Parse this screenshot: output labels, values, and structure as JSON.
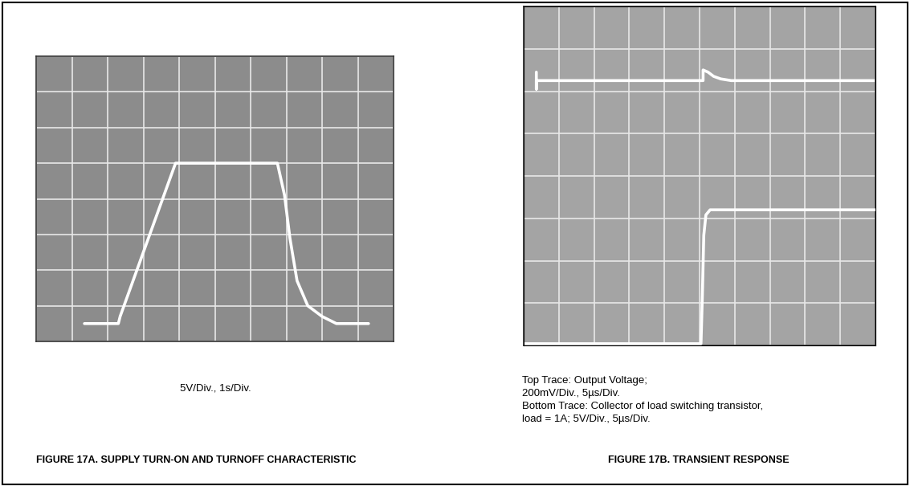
{
  "chart_data": [
    {
      "type": "line",
      "title": "FIGURE 17A. SUPPLY TURN-ON AND TURNOFF CHARACTERISTIC",
      "subtitle": "5V/Div., 1s/Div.",
      "xlim": [
        0,
        10
      ],
      "xticks": [
        0,
        1,
        2,
        3,
        4,
        5,
        6,
        7,
        8,
        9,
        10
      ],
      "ylim": [
        -2.5,
        37.5
      ],
      "yticks": [
        -2.5,
        2.5,
        7.5,
        12.5,
        17.5,
        22.5,
        27.5,
        32.5,
        37.5
      ],
      "grid": true,
      "tick_labels": false,
      "color": "#8c8c8c",
      "series": [
        {
          "color": "#ffffff",
          "x": [
            1.35,
            2.3,
            2.35,
            3.9,
            6.75,
            6.95,
            7.1,
            7.3,
            7.6,
            8.0,
            8.4,
            9.3
          ],
          "values": [
            0,
            0,
            1,
            22.5,
            22.5,
            18,
            12,
            6,
            2.5,
            1,
            0,
            0
          ]
        }
      ]
    },
    {
      "type": "line",
      "title": "FIGURE 17B. TRANSIENT RESPONSE",
      "subtitle": "Top Trace: Output Voltage;\n200mV/Div., 5µs/Div.\nBottom Trace: Collector of load switching transistor,\nload = 1A; 5V/Div., 5µs/Div.",
      "xlim": [
        0,
        50
      ],
      "xticks": [
        0,
        5,
        10,
        15,
        20,
        25,
        30,
        35,
        40,
        45,
        50
      ],
      "ylim": [
        -800,
        800
      ],
      "yticks": [
        -800,
        -600,
        -400,
        -200,
        0,
        200,
        400,
        600,
        800
      ],
      "y2lim": [
        -20,
        20
      ],
      "y2ticks": [
        -20,
        -15,
        -10,
        -5,
        0,
        5,
        10,
        15,
        20
      ],
      "grid": true,
      "tick_labels": false,
      "color": "#a4a4a4",
      "series": [
        {
          "color": "#ffffff",
          "x": [
            1.8,
            1.8,
            1.8,
            25.5,
            25.5,
            26.2,
            27,
            28,
            29.5,
            50
          ],
          "values": [
            490,
            410,
            450,
            450,
            500,
            490,
            470,
            458,
            450,
            450
          ]
        },
        {
          "color": "#ffffff",
          "axis": "y2",
          "x": [
            0,
            25.2,
            25.4,
            25.6,
            25.9,
            26.5,
            50
          ],
          "values": [
            -19.8,
            -19.8,
            -14,
            -7,
            -4.6,
            -4,
            -4
          ]
        }
      ]
    }
  ]
}
